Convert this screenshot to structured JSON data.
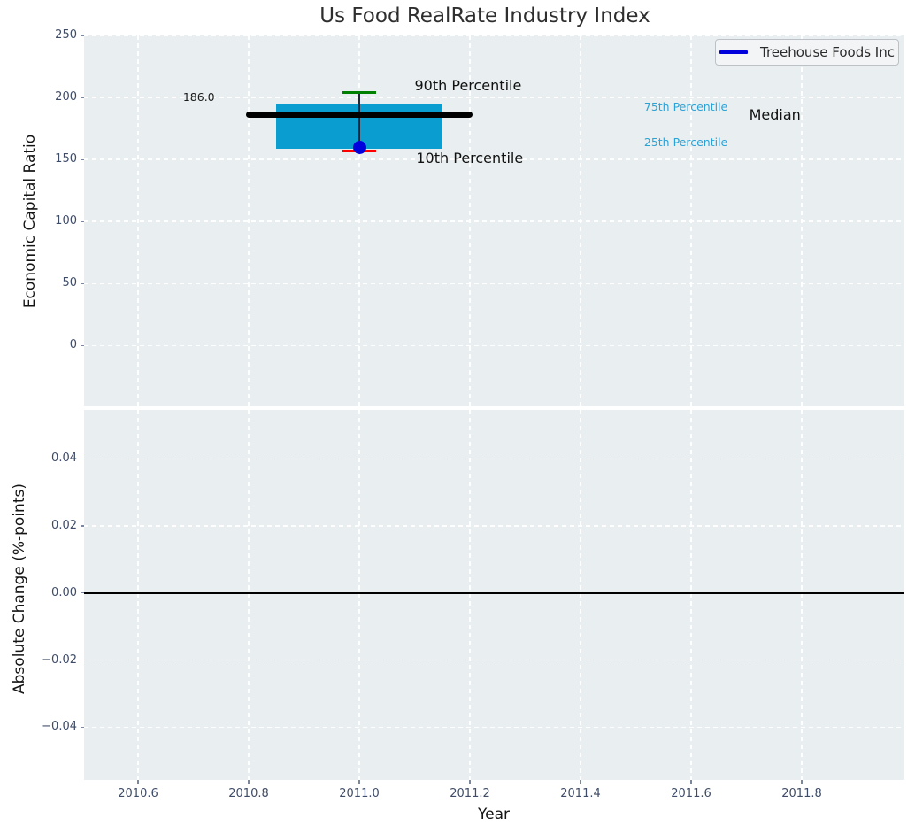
{
  "title": "Us Food RealRate Industry Index",
  "legend": {
    "items": [
      {
        "label": "Treehouse Foods Inc",
        "color": "#0000dd"
      }
    ]
  },
  "chart_data": {
    "type": "boxplot",
    "title": "Us Food RealRate Industry Index",
    "xlim": [
      2010.5,
      2011.99
    ],
    "grid": true,
    "subplots": [
      {
        "ylabel": "Economic Capital Ratio",
        "ylim": [
          -49,
          250
        ],
        "yticks": [
          250,
          200,
          150,
          100,
          50,
          0
        ],
        "ytick_labels": [
          "250",
          "200",
          "150",
          "100",
          "50",
          "0"
        ],
        "series": [
          {
            "name": "Treehouse Foods Inc",
            "x": 2011.0,
            "p90": 204,
            "p75": 195,
            "median": 186.0,
            "p25": 159,
            "p10": 157,
            "company_value": 160,
            "box_halfwidth": 0.15,
            "median_halfwidth": 0.205,
            "cap_halfwidth": 0.031
          }
        ],
        "annotations": [
          {
            "text": "186.0",
            "x": 2010.71,
            "y": 200,
            "align": "center",
            "size": "sm",
            "color": "#1a1a1a"
          },
          {
            "text": "90th Percentile",
            "x": 2011.1,
            "y": 209.5,
            "align": "left",
            "size": "lg",
            "color": "#111111"
          },
          {
            "text": "10th Percentile",
            "x": 2011.103,
            "y": 151,
            "align": "left",
            "size": "lg",
            "color": "#111111"
          },
          {
            "text": "75th Percentile",
            "x": 2011.515,
            "y": 192.5,
            "align": "left",
            "size": "sm",
            "color": "#29a3d7"
          },
          {
            "text": "25th Percentile",
            "x": 2011.515,
            "y": 164,
            "align": "left",
            "size": "sm",
            "color": "#29a3d7"
          },
          {
            "text": "Median",
            "x": 2011.705,
            "y": 185.5,
            "align": "left",
            "size": "lg",
            "color": "#111111"
          }
        ]
      },
      {
        "ylabel": "Absolute Change (%-points)",
        "xlabel": "Year",
        "ylim": [
          -0.055,
          0.055
        ],
        "yticks": [
          0.04,
          0.02,
          0,
          -0.02,
          -0.04
        ],
        "ytick_labels": [
          "0.04",
          "0.02",
          "0.00",
          "−0.02",
          "−0.04"
        ],
        "xticks": [
          2010.6,
          2010.8,
          2011.0,
          2011.2,
          2011.4,
          2011.6,
          2011.8
        ],
        "xtick_labels": [
          "2010.6",
          "2010.8",
          "2011.0",
          "2011.2",
          "2011.4",
          "2011.6",
          "2011.8"
        ],
        "zero_line": 0,
        "series": []
      }
    ],
    "colors": {
      "box_fill": "#0a9dcf",
      "median_line": "#000000",
      "p90_cap": "#008000",
      "p10_cap": "#ff0000",
      "company_marker": "#0000dd",
      "percentile_label": "#29a3d7",
      "axes_background": "#e9eef0",
      "tick_label": "#3f4c67"
    }
  }
}
